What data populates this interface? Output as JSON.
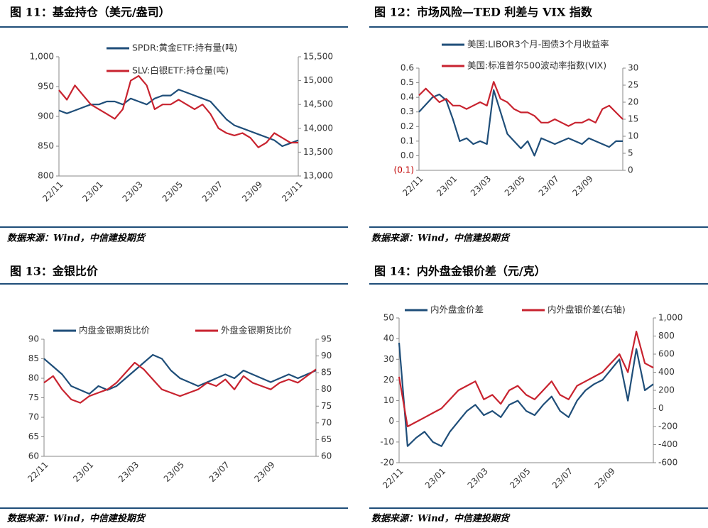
{
  "chart_data": [
    {
      "type": "line",
      "title": "图 11：基金持仓（美元/盎司）",
      "source": "数据来源：Wind，中信建投期货",
      "categories": [
        "22/11",
        null,
        null,
        null,
        null,
        "23/01",
        null,
        null,
        null,
        null,
        "23/03",
        null,
        null,
        null,
        null,
        "23/05",
        null,
        null,
        null,
        null,
        "23/07",
        null,
        null,
        null,
        null,
        "23/09",
        null,
        null,
        null,
        null,
        "23/11"
      ],
      "series": [
        {
          "name": "SPDR:黄金ETF:持有量(吨)",
          "color": "#1f4e79",
          "axis": "y",
          "values": [
            910,
            905,
            910,
            915,
            920,
            920,
            925,
            925,
            920,
            930,
            925,
            920,
            930,
            935,
            935,
            945,
            940,
            935,
            930,
            925,
            910,
            895,
            885,
            880,
            875,
            870,
            865,
            860,
            850,
            855,
            860
          ]
        },
        {
          "name": "SLV:白银ETF:持仓量(吨)",
          "color": "#c8232f",
          "axis": "y2",
          "values": [
            14800,
            14600,
            14900,
            14700,
            14500,
            14400,
            14300,
            14200,
            14400,
            15000,
            15100,
            14900,
            14400,
            14500,
            14500,
            14600,
            14500,
            14400,
            14500,
            14300,
            14000,
            13900,
            13850,
            13900,
            13800,
            13600,
            13700,
            13900,
            13800,
            13700,
            13700
          ]
        }
      ],
      "ylim": [
        800,
        1000
      ],
      "yticks": [
        800,
        850,
        900,
        950,
        {
          "value": 1000,
          "label": "1,000"
        }
      ],
      "y2lim": [
        13000,
        15500
      ],
      "y2ticks": [
        {
          "value": 13000,
          "label": "13,000"
        },
        {
          "value": 13500,
          "label": "13,500"
        },
        {
          "value": 14000,
          "label": "14,000"
        },
        {
          "value": 14500,
          "label": "14,500"
        },
        {
          "value": 15000,
          "label": "15,000"
        },
        {
          "value": 15500,
          "label": "15,500"
        }
      ]
    },
    {
      "type": "line",
      "title": "图 12：市场风险—TED 利差与 VIX 指数",
      "source": "数据来源：Wind，中信建投期货",
      "categories": [
        "22/11",
        null,
        null,
        null,
        null,
        "23/01",
        null,
        null,
        null,
        null,
        "23/03",
        null,
        null,
        null,
        null,
        "23/05",
        null,
        null,
        null,
        null,
        "23/07",
        null,
        null,
        null,
        null,
        "23/09",
        null,
        null,
        null,
        null,
        null
      ],
      "series": [
        {
          "name": "美国:LIBOR3个月-国债3个月收益率",
          "color": "#1f4e79",
          "axis": "y",
          "values": [
            0.3,
            0.35,
            0.4,
            0.42,
            0.38,
            0.25,
            0.1,
            0.12,
            0.08,
            0.1,
            0.08,
            0.45,
            0.3,
            0.15,
            0.1,
            0.05,
            0.1,
            0.0,
            0.12,
            0.1,
            0.08,
            0.1,
            0.12,
            0.1,
            0.08,
            0.12,
            0.1,
            0.08,
            0.06,
            0.1,
            0.1
          ]
        },
        {
          "name": "美国:标准普尔500波动率指数(VIX)",
          "color": "#c8232f",
          "axis": "y2",
          "values": [
            22,
            24,
            22,
            20,
            21,
            19,
            19,
            18,
            19,
            20,
            19,
            26,
            21,
            20,
            18,
            17,
            17,
            16,
            14,
            14,
            15,
            14,
            13,
            14,
            14,
            15,
            14,
            18,
            19,
            17,
            15
          ]
        }
      ],
      "ylim": [
        -0.1,
        0.6
      ],
      "yticks": [
        {
          "value": -0.1,
          "label": "(0.1)",
          "color": "#c00000"
        },
        {
          "value": 0,
          "label": "0.0"
        },
        0.1,
        0.2,
        0.3,
        0.4,
        0.5,
        0.6
      ],
      "y2lim": [
        0,
        30
      ],
      "y2ticks": [
        0,
        5,
        10,
        15,
        20,
        25,
        30
      ]
    },
    {
      "type": "line",
      "title": "图 13：金银比价",
      "source": "数据来源：Wind，中信建投期货",
      "categories": [
        "22/11",
        null,
        null,
        null,
        null,
        "23/01",
        null,
        null,
        null,
        null,
        "23/03",
        null,
        null,
        null,
        null,
        "23/05",
        null,
        null,
        null,
        null,
        "23/07",
        null,
        null,
        null,
        null,
        "23/09",
        null,
        null,
        null,
        null,
        null
      ],
      "series": [
        {
          "name": "内盘金银期货比价",
          "color": "#1f4e79",
          "axis": "y",
          "values": [
            85,
            83,
            81,
            78,
            77,
            76,
            78,
            77,
            78,
            80,
            82,
            84,
            86,
            85,
            82,
            80,
            79,
            78,
            79,
            80,
            81,
            80,
            82,
            81,
            80,
            79,
            80,
            81,
            80,
            81,
            82
          ]
        },
        {
          "name": "外盘金银期货比价",
          "color": "#c8232f",
          "axis": "y2",
          "values": [
            82,
            84,
            80,
            77,
            76,
            78,
            79,
            80,
            82,
            85,
            88,
            86,
            83,
            80,
            79,
            78,
            79,
            80,
            82,
            81,
            83,
            80,
            84,
            82,
            81,
            80,
            82,
            83,
            82,
            84,
            86
          ]
        }
      ],
      "ylim": [
        60,
        90
      ],
      "yticks": [
        60,
        65,
        70,
        75,
        80,
        85,
        90
      ],
      "y2lim": [
        60,
        95
      ],
      "y2ticks": [
        60,
        65,
        70,
        75,
        80,
        85,
        90,
        95
      ]
    },
    {
      "type": "line",
      "title": "图 14：内外盘金银价差（元/克）",
      "source": "数据来源：Wind，中信建投期货",
      "categories": [
        "22/11",
        null,
        null,
        null,
        null,
        "23/01",
        null,
        null,
        null,
        null,
        "23/03",
        null,
        null,
        null,
        null,
        "23/05",
        null,
        null,
        null,
        null,
        "23/07",
        null,
        null,
        null,
        null,
        "23/09",
        null,
        null,
        null,
        null,
        null
      ],
      "series": [
        {
          "name": "内外盘金价差",
          "color": "#1f4e79",
          "axis": "y",
          "values": [
            38,
            -12,
            -8,
            -5,
            -10,
            -12,
            -5,
            0,
            5,
            8,
            3,
            5,
            2,
            8,
            10,
            5,
            3,
            8,
            12,
            5,
            2,
            10,
            15,
            18,
            20,
            25,
            30,
            10,
            35,
            15,
            18
          ]
        },
        {
          "name": "内外盘银价差(右轴)",
          "color": "#c8232f",
          "axis": "y2",
          "values": [
            350,
            -200,
            -150,
            -100,
            -50,
            0,
            100,
            200,
            250,
            300,
            100,
            150,
            50,
            200,
            250,
            150,
            100,
            200,
            300,
            150,
            100,
            250,
            300,
            350,
            400,
            500,
            600,
            400,
            850,
            500,
            450
          ]
        }
      ],
      "ylim": [
        -20,
        50
      ],
      "yticks": [
        -20,
        -10,
        0,
        10,
        20,
        30,
        40,
        50
      ],
      "y2lim": [
        -600,
        1000
      ],
      "y2ticks": [
        -600,
        -400,
        -200,
        0,
        200,
        400,
        600,
        800,
        {
          "value": 1000,
          "label": "1,000"
        }
      ]
    }
  ]
}
